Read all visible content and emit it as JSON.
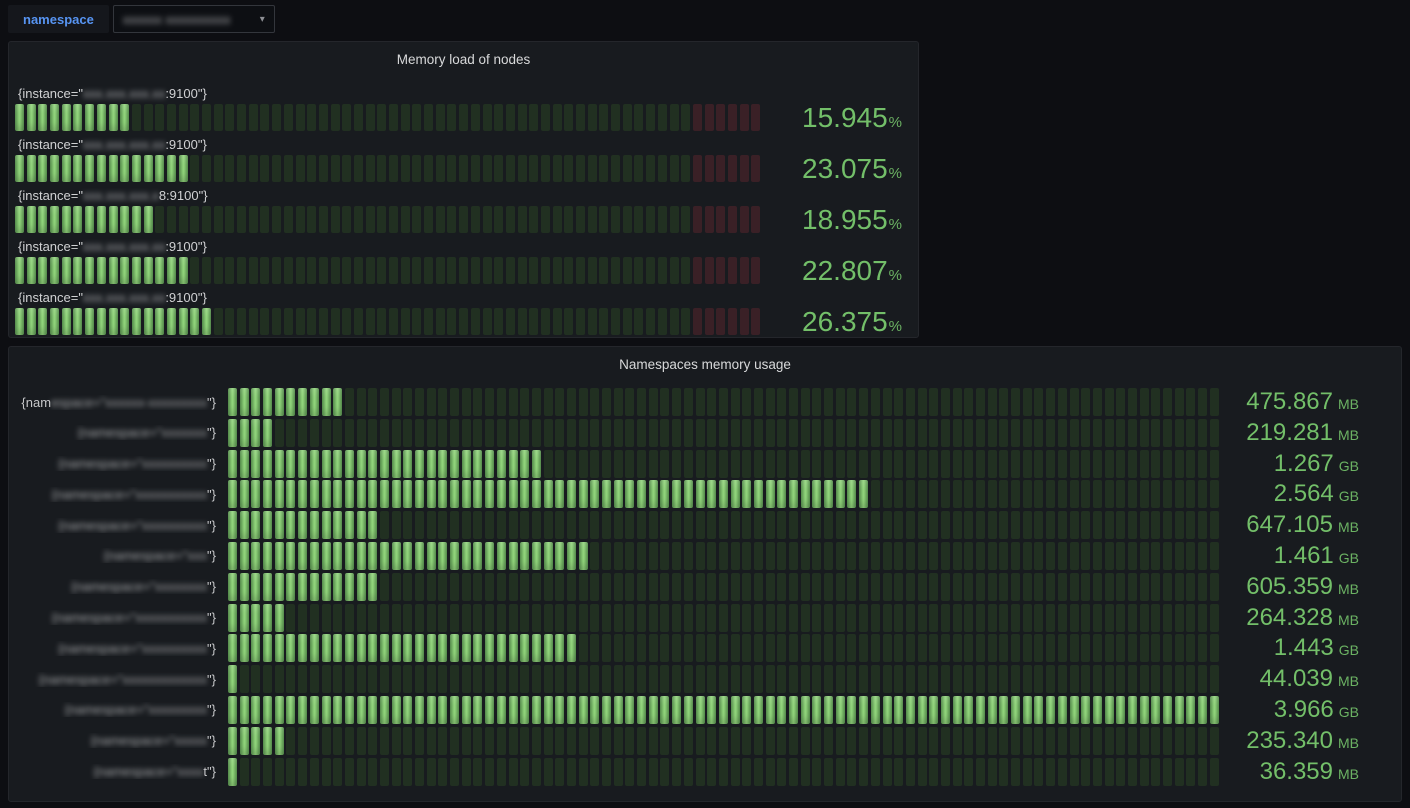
{
  "colors": {
    "value_green": "#73bf69",
    "lit_cell_green": "#92d87b",
    "unlit_cell_green": "#213021",
    "unlit_cell_red": "#3a2026",
    "variable_blue": "#5794F2",
    "panel_bg": "#181b1f",
    "page_bg": "#0d0e12"
  },
  "toolbar": {
    "variable_label": "namespace",
    "variable_value_redacted": "xxxxxx xxxxxxxxxx",
    "dropdown_caret_icon": "▾"
  },
  "memory_panel": {
    "title": "Memory load of nodes",
    "gauge_type": "led-bar-gauge",
    "unit_suffix": "%",
    "cells_total": 64,
    "red_zone_cells": 6,
    "rows": [
      {
        "label_prefix": "{instance=\"",
        "label_redacted": "xxx.xxx.xxx.xx",
        "label_suffix": ":9100\"}",
        "value": "15.945",
        "lit_cells": 10
      },
      {
        "label_prefix": "{instance=\"",
        "label_redacted": "xxx.xxx.xxx.xx",
        "label_suffix": ":9100\"}",
        "value": "23.075",
        "lit_cells": 15
      },
      {
        "label_prefix": "{instance=\"",
        "label_redacted": "xxx.xxx.xxx.x",
        "label_suffix": "8:9100\"}",
        "value": "18.955",
        "lit_cells": 12
      },
      {
        "label_prefix": "{instance=\"",
        "label_redacted": "xxx.xxx.xxx.xx",
        "label_suffix": ":9100\"}",
        "value": "22.807",
        "lit_cells": 15
      },
      {
        "label_prefix": "{instance=\"",
        "label_redacted": "xxx.xxx.xxx.xx",
        "label_suffix": ":9100\"}",
        "value": "26.375",
        "lit_cells": 17
      }
    ]
  },
  "namespace_panel": {
    "title": "Namespaces memory usage",
    "gauge_type": "led-bar-gauge",
    "cells_total": 85,
    "red_zone_cells": 0,
    "rows": [
      {
        "label_prefix": "{nam",
        "label_redacted": "espace=\"xxxxxx-xxxxxxxxx",
        "label_suffix": "\"}",
        "value": "475.867",
        "unit": "MB",
        "lit_cells": 10
      },
      {
        "label_prefix": "",
        "label_redacted": "{namespace=\"xxxxxxx",
        "label_suffix": "\"}",
        "value": "219.281",
        "unit": "MB",
        "lit_cells": 4
      },
      {
        "label_prefix": "",
        "label_redacted": "{namespace=\"xxxxxxxxxx",
        "label_suffix": "\"}",
        "value": "1.267",
        "unit": "GB",
        "lit_cells": 27
      },
      {
        "label_prefix": "",
        "label_redacted": "{namespace=\"xxxxxxxxxxx",
        "label_suffix": "\"}",
        "value": "2.564",
        "unit": "GB",
        "lit_cells": 55
      },
      {
        "label_prefix": "",
        "label_redacted": "{namespace=\"xxxxxxxxxx",
        "label_suffix": "\"}",
        "value": "647.105",
        "unit": "MB",
        "lit_cells": 13
      },
      {
        "label_prefix": "",
        "label_redacted": "{namespace=\"xxx",
        "label_suffix": "\"}",
        "value": "1.461",
        "unit": "GB",
        "lit_cells": 31
      },
      {
        "label_prefix": "",
        "label_redacted": "{namespace=\"xxxxxxxx",
        "label_suffix": "\"}",
        "value": "605.359",
        "unit": "MB",
        "lit_cells": 13
      },
      {
        "label_prefix": "",
        "label_redacted": "{namespace=\"xxxxxxxxxxx",
        "label_suffix": "\"}",
        "value": "264.328",
        "unit": "MB",
        "lit_cells": 5
      },
      {
        "label_prefix": "",
        "label_redacted": "{namespace=\"xxxxxxxxxx",
        "label_suffix": "\"}",
        "value": "1.443",
        "unit": "GB",
        "lit_cells": 30
      },
      {
        "label_prefix": "",
        "label_redacted": "{namespace=\"xxxxxxxxxxxxx",
        "label_suffix": "\"}",
        "value": "44.039",
        "unit": "MB",
        "lit_cells": 1
      },
      {
        "label_prefix": "",
        "label_redacted": "{namespace=\"xxxxxxxxx",
        "label_suffix": "\"}",
        "value": "3.966",
        "unit": "GB",
        "lit_cells": 85
      },
      {
        "label_prefix": "",
        "label_redacted": "{namespace=\"xxxxx",
        "label_suffix": "\"}",
        "value": "235.340",
        "unit": "MB",
        "lit_cells": 5
      },
      {
        "label_prefix": "",
        "label_redacted": "{namespace=\"xxxx",
        "label_suffix": "t\"}",
        "value": "36.359",
        "unit": "MB",
        "lit_cells": 1
      }
    ]
  }
}
